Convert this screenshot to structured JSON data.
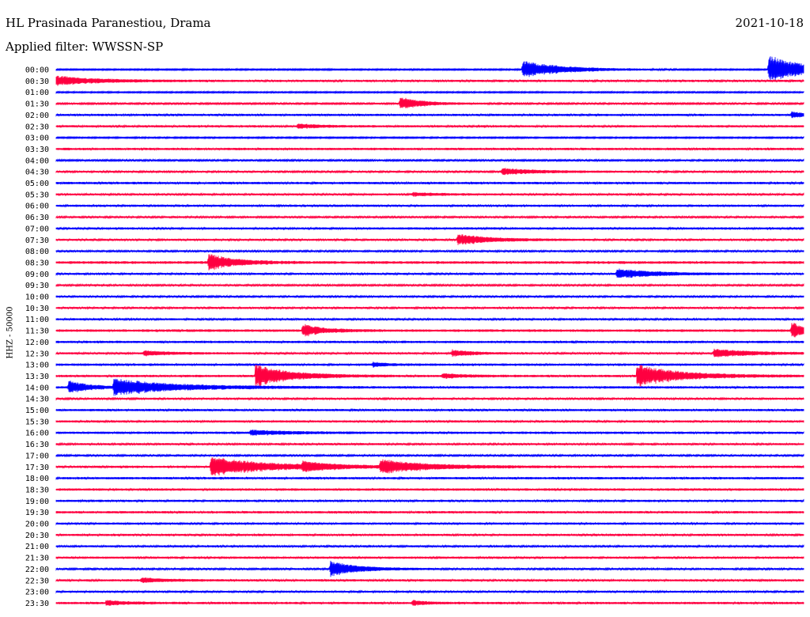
{
  "header": {
    "station": "HL Prasinada Paranestiou, Drama",
    "date": "2021-10-18",
    "filter": "Applied filter: WWSSN-SP"
  },
  "channel_label": "HHZ - 50000",
  "colors": {
    "odd_row": "#0000ff",
    "even_row": "#ff0040",
    "text": "#000000"
  },
  "chart_data": {
    "type": "helicorder",
    "row_minutes": 30,
    "row_labels": [
      "00:00",
      "00:30",
      "01:00",
      "01:30",
      "02:00",
      "02:30",
      "03:00",
      "03:30",
      "04:00",
      "04:30",
      "05:00",
      "05:30",
      "06:00",
      "06:30",
      "07:00",
      "07:30",
      "08:00",
      "08:30",
      "09:00",
      "09:30",
      "10:00",
      "10:30",
      "11:00",
      "11:30",
      "12:00",
      "12:30",
      "13:00",
      "13:30",
      "14:00",
      "14:30",
      "15:00",
      "15:30",
      "16:00",
      "16:30",
      "17:00",
      "17:30",
      "18:00",
      "18:30",
      "19:00",
      "19:30",
      "20:00",
      "20:30",
      "21:00",
      "21:30",
      "22:00",
      "22:30",
      "23:00",
      "23:30"
    ],
    "noise": [
      1.0,
      1.5,
      1.0,
      1.2,
      1.5,
      1.5,
      1.0,
      1.6,
      1.2,
      1.3,
      1.6,
      1.4,
      1.5,
      1.3,
      1.5,
      1.4,
      1.3,
      1.8,
      1.4,
      1.3,
      1.3,
      1.4,
      1.4,
      1.7,
      1.6,
      1.4,
      1.6,
      1.6,
      1.6,
      1.4,
      1.5,
      1.5,
      1.6,
      1.4,
      1.3,
      1.6,
      1.6,
      1.6,
      1.5,
      1.6,
      1.5,
      1.5,
      1.4,
      1.5,
      1.3,
      1.5,
      1.4,
      1.6
    ],
    "events": [
      {
        "row": 0,
        "minute": 18.7,
        "amp": 11,
        "dur": 1.6
      },
      {
        "row": 0,
        "minute": 28.6,
        "amp": 18,
        "dur": 1.4
      },
      {
        "row": 1,
        "minute": 0.0,
        "amp": 6,
        "dur": 1.5
      },
      {
        "row": 3,
        "minute": 13.8,
        "amp": 8,
        "dur": 0.9
      },
      {
        "row": 4,
        "minute": 29.5,
        "amp": 4,
        "dur": 0.6
      },
      {
        "row": 5,
        "minute": 9.7,
        "amp": 3,
        "dur": 0.8
      },
      {
        "row": 9,
        "minute": 17.9,
        "amp": 4,
        "dur": 1.5
      },
      {
        "row": 11,
        "minute": 14.3,
        "amp": 2,
        "dur": 1.0
      },
      {
        "row": 15,
        "minute": 16.1,
        "amp": 7,
        "dur": 1.3
      },
      {
        "row": 17,
        "minute": 6.1,
        "amp": 11,
        "dur": 1.0
      },
      {
        "row": 18,
        "minute": 22.5,
        "amp": 6,
        "dur": 1.6
      },
      {
        "row": 23,
        "minute": 9.9,
        "amp": 8,
        "dur": 0.8
      },
      {
        "row": 23,
        "minute": 29.5,
        "amp": 11,
        "dur": 0.5
      },
      {
        "row": 25,
        "minute": 3.5,
        "amp": 3,
        "dur": 1.0
      },
      {
        "row": 25,
        "minute": 15.9,
        "amp": 4,
        "dur": 0.8
      },
      {
        "row": 25,
        "minute": 26.4,
        "amp": 5,
        "dur": 1.6
      },
      {
        "row": 26,
        "minute": 12.7,
        "amp": 3,
        "dur": 0.5
      },
      {
        "row": 27,
        "minute": 8.0,
        "amp": 14,
        "dur": 1.4
      },
      {
        "row": 27,
        "minute": 15.5,
        "amp": 3,
        "dur": 0.8
      },
      {
        "row": 27,
        "minute": 23.3,
        "amp": 14,
        "dur": 1.7
      },
      {
        "row": 28,
        "minute": 0.5,
        "amp": 8,
        "dur": 0.8
      },
      {
        "row": 28,
        "minute": 2.3,
        "amp": 10,
        "dur": 2.5
      },
      {
        "row": 32,
        "minute": 7.8,
        "amp": 3,
        "dur": 1.5
      },
      {
        "row": 35,
        "minute": 6.2,
        "amp": 12,
        "dur": 2.3
      },
      {
        "row": 35,
        "minute": 9.9,
        "amp": 5,
        "dur": 1.0
      },
      {
        "row": 35,
        "minute": 13.0,
        "amp": 8,
        "dur": 2.0
      },
      {
        "row": 44,
        "minute": 11.0,
        "amp": 10,
        "dur": 1.1
      },
      {
        "row": 45,
        "minute": 3.4,
        "amp": 3,
        "dur": 1.0
      },
      {
        "row": 47,
        "minute": 2.0,
        "amp": 3,
        "dur": 0.8
      },
      {
        "row": 47,
        "minute": 14.3,
        "amp": 3,
        "dur": 0.5
      }
    ]
  }
}
